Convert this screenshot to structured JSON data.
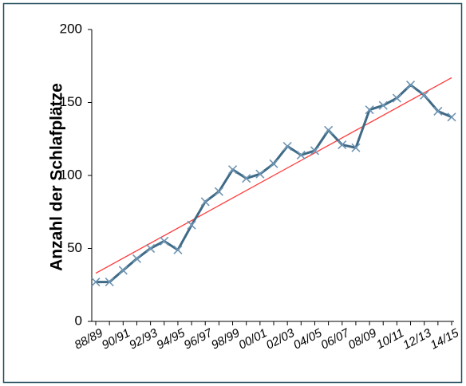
{
  "chart_data": {
    "type": "line",
    "y_label": "Anzahl der Schlafplätze",
    "categories": [
      "88/89",
      null,
      "90/91",
      null,
      "92/93",
      null,
      "94/95",
      null,
      "96/97",
      null,
      "98/99",
      null,
      "00/01",
      null,
      "02/03",
      null,
      "04/05",
      null,
      "06/07",
      null,
      "08/09",
      null,
      "10/11",
      null,
      "12/13",
      null,
      "14/15"
    ],
    "series": [
      {
        "color": "#3e6a86",
        "marker_color": "#6f95b3",
        "values": [
          27,
          27,
          35,
          43,
          50,
          55,
          49,
          66,
          82,
          89,
          104,
          98,
          101,
          108,
          120,
          114,
          117,
          131,
          121,
          119,
          145,
          148,
          153,
          162,
          155,
          144,
          140
        ]
      }
    ],
    "trend": {
      "color": "#ff3b3b",
      "values": [
        33,
        167
      ]
    },
    "ylim": [
      0,
      200
    ],
    "yticks": [
      0,
      50,
      100,
      150,
      200
    ],
    "grid": false
  }
}
